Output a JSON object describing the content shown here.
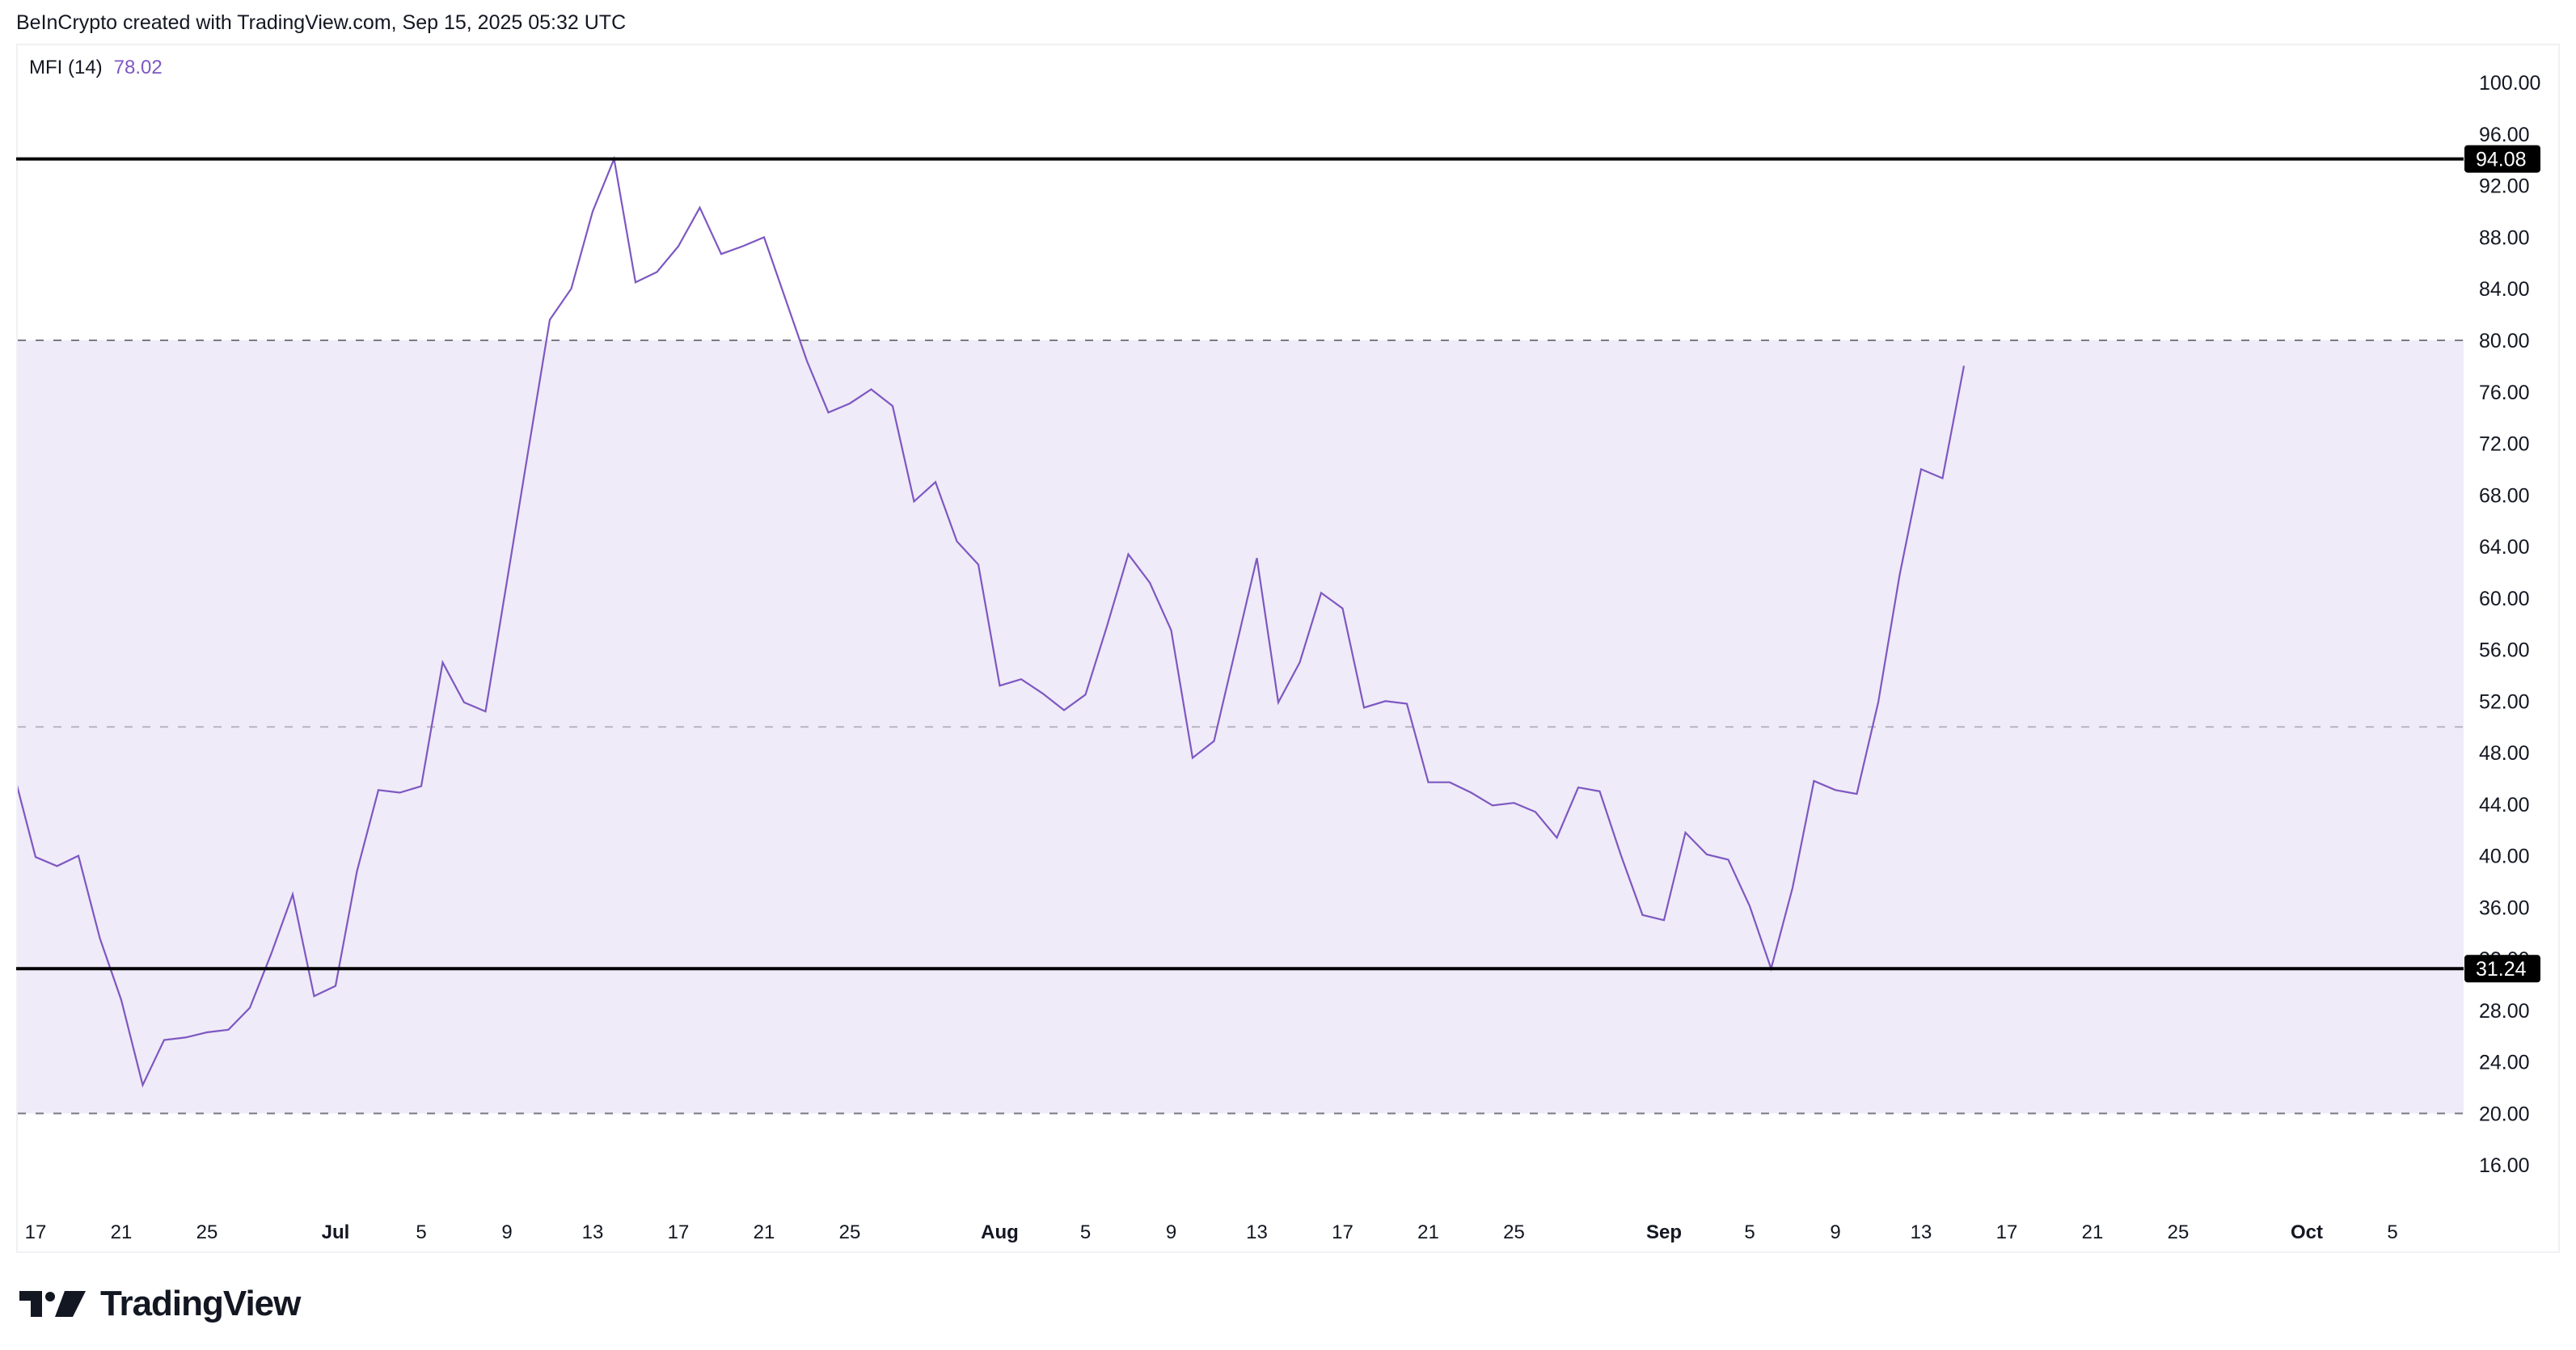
{
  "header": {
    "attribution": "BeInCrypto created with TradingView.com, Sep 15, 2025 05:32 UTC"
  },
  "legend": {
    "indicator": "MFI (14)",
    "value": "78.02"
  },
  "colors": {
    "line": "#7e57c2",
    "band_fill": "#efebf8",
    "band_border": "#787b86",
    "middle_line": "#b8b5c4",
    "hline": "#000000",
    "badge_bg": "#000000"
  },
  "price_axis": {
    "ticks": [
      "100.00",
      "96.00",
      "92.00",
      "88.00",
      "84.00",
      "80.00",
      "76.00",
      "72.00",
      "68.00",
      "64.00",
      "60.00",
      "56.00",
      "52.00",
      "48.00",
      "44.00",
      "40.00",
      "36.00",
      "32.00",
      "28.00",
      "24.00",
      "20.00",
      "16.00"
    ]
  },
  "time_axis": {
    "labels": [
      {
        "text": "17",
        "day": -14,
        "month": false
      },
      {
        "text": "21",
        "day": -10,
        "month": false
      },
      {
        "text": "25",
        "day": -6,
        "month": false
      },
      {
        "text": "Jul",
        "day": 0,
        "month": true
      },
      {
        "text": "5",
        "day": 4,
        "month": false
      },
      {
        "text": "9",
        "day": 8,
        "month": false
      },
      {
        "text": "13",
        "day": 12,
        "month": false
      },
      {
        "text": "17",
        "day": 16,
        "month": false
      },
      {
        "text": "21",
        "day": 20,
        "month": false
      },
      {
        "text": "25",
        "day": 24,
        "month": false
      },
      {
        "text": "Aug",
        "day": 31,
        "month": true
      },
      {
        "text": "5",
        "day": 35,
        "month": false
      },
      {
        "text": "9",
        "day": 39,
        "month": false
      },
      {
        "text": "13",
        "day": 43,
        "month": false
      },
      {
        "text": "17",
        "day": 47,
        "month": false
      },
      {
        "text": "21",
        "day": 51,
        "month": false
      },
      {
        "text": "25",
        "day": 55,
        "month": false
      },
      {
        "text": "Sep",
        "day": 62,
        "month": true
      },
      {
        "text": "5",
        "day": 66,
        "month": false
      },
      {
        "text": "9",
        "day": 70,
        "month": false
      },
      {
        "text": "13",
        "day": 74,
        "month": false
      },
      {
        "text": "17",
        "day": 78,
        "month": false
      },
      {
        "text": "21",
        "day": 82,
        "month": false
      },
      {
        "text": "25",
        "day": 86,
        "month": false
      },
      {
        "text": "Oct",
        "day": 92,
        "month": true
      },
      {
        "text": "5",
        "day": 96,
        "month": false
      }
    ]
  },
  "horizontal_lines": [
    {
      "value": 94.08,
      "label": "94.08"
    },
    {
      "value": 31.24,
      "label": "31.24"
    }
  ],
  "logo": {
    "text": "TradingView"
  },
  "chart_data": {
    "type": "line",
    "title": "MFI (14)",
    "xlabel": "",
    "ylabel": "",
    "ylim": [
      12,
      104
    ],
    "grid": false,
    "legend_position": "top-left",
    "bands": {
      "upper": 80,
      "middle": 50,
      "lower": 20
    },
    "annotations": [
      {
        "type": "hline",
        "value": 94.08
      },
      {
        "type": "hline",
        "value": 31.24
      }
    ],
    "last_value": 78.02,
    "x_start": "Jun 16",
    "x": [
      "Jun 16",
      "Jun 17",
      "Jun 18",
      "Jun 19",
      "Jun 20",
      "Jun 21",
      "Jun 22",
      "Jun 23",
      "Jun 24",
      "Jun 25",
      "Jun 26",
      "Jun 27",
      "Jun 28",
      "Jun 29",
      "Jun 30",
      "Jul 1",
      "Jul 2",
      "Jul 3",
      "Jul 4",
      "Jul 5",
      "Jul 6",
      "Jul 7",
      "Jul 8",
      "Jul 9",
      "Jul 10",
      "Jul 11",
      "Jul 12",
      "Jul 13",
      "Jul 14",
      "Jul 15",
      "Jul 16",
      "Jul 17",
      "Jul 18",
      "Jul 19",
      "Jul 20",
      "Jul 21",
      "Jul 22",
      "Jul 23",
      "Jul 24",
      "Jul 25",
      "Jul 26",
      "Jul 27",
      "Jul 28",
      "Jul 29",
      "Jul 30",
      "Jul 31",
      "Aug 1",
      "Aug 2",
      "Aug 3",
      "Aug 4",
      "Aug 5",
      "Aug 6",
      "Aug 7",
      "Aug 8",
      "Aug 9",
      "Aug 10",
      "Aug 11",
      "Aug 12",
      "Aug 13",
      "Aug 14",
      "Aug 15",
      "Aug 16",
      "Aug 17",
      "Aug 18",
      "Aug 19",
      "Aug 20",
      "Aug 21",
      "Aug 22",
      "Aug 23",
      "Aug 24",
      "Aug 25",
      "Aug 26",
      "Aug 27",
      "Aug 28",
      "Aug 29",
      "Aug 30",
      "Aug 31",
      "Sep 1",
      "Sep 2",
      "Sep 3",
      "Sep 4",
      "Sep 5",
      "Sep 6",
      "Sep 7",
      "Sep 8",
      "Sep 9",
      "Sep 10",
      "Sep 11",
      "Sep 12",
      "Sep 13",
      "Sep 14",
      "Sep 15"
    ],
    "series": [
      {
        "name": "MFI (14)",
        "values": [
          46.3,
          39.9,
          39.2,
          40.0,
          33.6,
          28.8,
          22.2,
          25.7,
          25.9,
          26.3,
          26.5,
          28.2,
          32.4,
          37.0,
          29.1,
          29.9,
          38.8,
          45.1,
          44.9,
          45.4,
          55.0,
          51.9,
          51.2,
          61.3,
          71.5,
          81.6,
          84.0,
          90.0,
          94.08,
          84.5,
          85.3,
          87.3,
          90.3,
          86.7,
          87.3,
          88.0,
          83.2,
          78.4,
          74.4,
          75.1,
          76.2,
          74.9,
          67.5,
          69.0,
          64.4,
          62.6,
          53.2,
          53.7,
          52.6,
          51.3,
          52.5,
          57.8,
          63.4,
          61.2,
          57.5,
          47.6,
          48.9,
          56.0,
          63.1,
          51.9,
          55.0,
          60.4,
          59.2,
          51.5,
          52.0,
          51.8,
          45.7,
          45.7,
          44.9,
          43.9,
          44.1,
          43.4,
          41.4,
          45.3,
          45.0,
          40.0,
          35.4,
          35.0,
          41.8,
          40.1,
          39.7,
          36.1,
          31.24,
          37.5,
          45.8,
          45.1,
          44.8,
          51.9,
          61.8,
          70.0,
          69.3,
          78.02
        ]
      }
    ]
  }
}
